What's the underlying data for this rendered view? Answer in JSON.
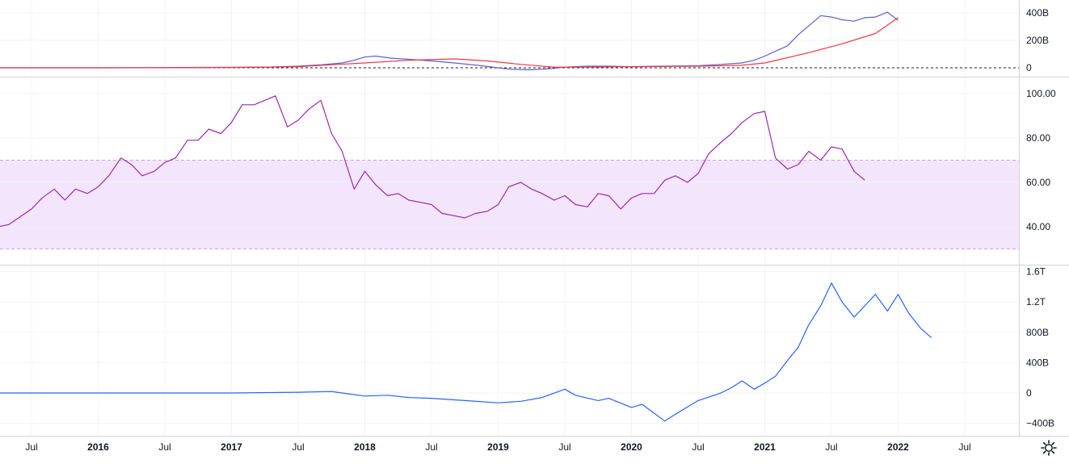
{
  "colors": {
    "grid": "#f0f3fa",
    "separator": "#d1d4dc",
    "macd_line": "#5b5fd4",
    "signal_line": "#f23645",
    "zero_line": "#1c1c1c",
    "rsi_line": "#9c27b0",
    "rsi_band": "#f3e5fc",
    "rsi_band_border": "#c8a6d8",
    "momentum_line": "#2962ff"
  },
  "settings_icon": "gear-icon",
  "chart_data": [
    {
      "type": "line",
      "panel": "macd",
      "grid": true,
      "y_ticks": [
        {
          "value": 0,
          "label": "0"
        },
        {
          "value": 200,
          "label": "200B"
        },
        {
          "value": 400,
          "label": "400B"
        }
      ],
      "ylim": [
        -25,
        450
      ],
      "zero_line": 0,
      "series": [
        {
          "color_key": "macd_line",
          "points": [
            [
              2015.0,
              0
            ],
            [
              2015.5,
              0
            ],
            [
              2016.0,
              0
            ],
            [
              2016.5,
              2
            ],
            [
              2017.0,
              4
            ],
            [
              2017.3,
              6
            ],
            [
              2017.5,
              12
            ],
            [
              2017.67,
              22
            ],
            [
              2017.83,
              35
            ],
            [
              2017.92,
              55
            ],
            [
              2018.0,
              78
            ],
            [
              2018.08,
              85
            ],
            [
              2018.2,
              70
            ],
            [
              2018.33,
              62
            ],
            [
              2018.5,
              50
            ],
            [
              2018.67,
              35
            ],
            [
              2018.83,
              20
            ],
            [
              2019.0,
              0
            ],
            [
              2019.08,
              -10
            ],
            [
              2019.25,
              -15
            ],
            [
              2019.42,
              -5
            ],
            [
              2019.5,
              5
            ],
            [
              2019.67,
              12
            ],
            [
              2019.83,
              12
            ],
            [
              2020.0,
              8
            ],
            [
              2020.25,
              12
            ],
            [
              2020.5,
              15
            ],
            [
              2020.67,
              25
            ],
            [
              2020.83,
              35
            ],
            [
              2020.92,
              55
            ],
            [
              2021.0,
              85
            ],
            [
              2021.17,
              160
            ],
            [
              2021.25,
              240
            ],
            [
              2021.42,
              380
            ],
            [
              2021.5,
              370
            ],
            [
              2021.58,
              350
            ],
            [
              2021.67,
              340
            ],
            [
              2021.75,
              365
            ],
            [
              2021.83,
              370
            ],
            [
              2021.92,
              405
            ],
            [
              2022.0,
              345
            ]
          ]
        },
        {
          "color_key": "signal_line",
          "points": [
            [
              2015.0,
              0
            ],
            [
              2016.0,
              0
            ],
            [
              2017.0,
              2
            ],
            [
              2017.5,
              8
            ],
            [
              2018.0,
              35
            ],
            [
              2018.33,
              55
            ],
            [
              2018.67,
              65
            ],
            [
              2018.92,
              50
            ],
            [
              2019.17,
              25
            ],
            [
              2019.42,
              5
            ],
            [
              2019.67,
              5
            ],
            [
              2020.0,
              8
            ],
            [
              2020.5,
              12
            ],
            [
              2020.83,
              18
            ],
            [
              2021.0,
              35
            ],
            [
              2021.33,
              110
            ],
            [
              2021.58,
              175
            ],
            [
              2021.83,
              250
            ],
            [
              2022.0,
              365
            ]
          ]
        }
      ]
    },
    {
      "type": "line",
      "panel": "rsi",
      "grid": true,
      "y_ticks": [
        {
          "value": 40,
          "label": "40.00"
        },
        {
          "value": 60,
          "label": "60.00"
        },
        {
          "value": 80,
          "label": "80.00"
        },
        {
          "value": 100,
          "label": "100.00"
        }
      ],
      "ylim": [
        25,
        105
      ],
      "band": [
        30,
        70
      ],
      "series": [
        {
          "color_key": "rsi_line",
          "points": [
            [
              2015.0,
              38
            ],
            [
              2015.08,
              41
            ],
            [
              2015.17,
              44
            ],
            [
              2015.25,
              40
            ],
            [
              2015.33,
              41
            ],
            [
              2015.5,
              48
            ],
            [
              2015.58,
              53
            ],
            [
              2015.67,
              57
            ],
            [
              2015.75,
              52
            ],
            [
              2015.83,
              57
            ],
            [
              2015.92,
              55
            ],
            [
              2016.0,
              58
            ],
            [
              2016.08,
              63
            ],
            [
              2016.17,
              71
            ],
            [
              2016.25,
              68
            ],
            [
              2016.33,
              63
            ],
            [
              2016.42,
              65
            ],
            [
              2016.5,
              69
            ],
            [
              2016.58,
              71
            ],
            [
              2016.67,
              79
            ],
            [
              2016.75,
              79
            ],
            [
              2016.83,
              84
            ],
            [
              2016.92,
              82
            ],
            [
              2017.0,
              87
            ],
            [
              2017.08,
              95
            ],
            [
              2017.17,
              95
            ],
            [
              2017.25,
              97
            ],
            [
              2017.33,
              99
            ],
            [
              2017.42,
              85
            ],
            [
              2017.5,
              88
            ],
            [
              2017.58,
              93
            ],
            [
              2017.67,
              97
            ],
            [
              2017.75,
              82
            ],
            [
              2017.83,
              74
            ],
            [
              2017.92,
              57
            ],
            [
              2018.0,
              65
            ],
            [
              2018.08,
              59
            ],
            [
              2018.17,
              54
            ],
            [
              2018.25,
              55
            ],
            [
              2018.33,
              52
            ],
            [
              2018.42,
              51
            ],
            [
              2018.5,
              50
            ],
            [
              2018.58,
              46
            ],
            [
              2018.67,
              45
            ],
            [
              2018.75,
              44
            ],
            [
              2018.83,
              46
            ],
            [
              2018.92,
              47
            ],
            [
              2019.0,
              50
            ],
            [
              2019.08,
              58
            ],
            [
              2019.17,
              60
            ],
            [
              2019.25,
              57
            ],
            [
              2019.33,
              55
            ],
            [
              2019.42,
              52
            ],
            [
              2019.5,
              54
            ],
            [
              2019.58,
              50
            ],
            [
              2019.67,
              49
            ],
            [
              2019.75,
              55
            ],
            [
              2019.83,
              54
            ],
            [
              2019.92,
              48
            ],
            [
              2020.0,
              53
            ],
            [
              2020.08,
              55
            ],
            [
              2020.17,
              55
            ],
            [
              2020.25,
              61
            ],
            [
              2020.33,
              63
            ],
            [
              2020.42,
              60
            ],
            [
              2020.5,
              64
            ],
            [
              2020.58,
              73
            ],
            [
              2020.67,
              78
            ],
            [
              2020.75,
              82
            ],
            [
              2020.83,
              87
            ],
            [
              2020.92,
              91
            ],
            [
              2021.0,
              92
            ],
            [
              2021.08,
              71
            ],
            [
              2021.17,
              66
            ],
            [
              2021.25,
              68
            ],
            [
              2021.33,
              74
            ],
            [
              2021.42,
              70
            ],
            [
              2021.5,
              76
            ],
            [
              2021.58,
              75
            ],
            [
              2021.67,
              65
            ],
            [
              2021.75,
              61
            ]
          ]
        }
      ]
    },
    {
      "type": "line",
      "panel": "momentum",
      "grid": true,
      "y_ticks": [
        {
          "value": -400,
          "label": "−400B"
        },
        {
          "value": 0,
          "label": "0"
        },
        {
          "value": 400,
          "label": "400B"
        },
        {
          "value": 800,
          "label": "800B"
        },
        {
          "value": 1200,
          "label": "1.2T"
        },
        {
          "value": 1600,
          "label": "1.6T"
        }
      ],
      "ylim": [
        -450,
        1620
      ],
      "series": [
        {
          "color_key": "momentum_line",
          "points": [
            [
              2015.0,
              0
            ],
            [
              2016.0,
              0
            ],
            [
              2017.0,
              0
            ],
            [
              2017.5,
              10
            ],
            [
              2017.75,
              20
            ],
            [
              2017.83,
              0
            ],
            [
              2018.0,
              -40
            ],
            [
              2018.17,
              -30
            ],
            [
              2018.33,
              -60
            ],
            [
              2018.5,
              -70
            ],
            [
              2018.75,
              -100
            ],
            [
              2019.0,
              -130
            ],
            [
              2019.17,
              -110
            ],
            [
              2019.33,
              -60
            ],
            [
              2019.5,
              50
            ],
            [
              2019.58,
              -30
            ],
            [
              2019.75,
              -100
            ],
            [
              2019.83,
              -70
            ],
            [
              2020.0,
              -190
            ],
            [
              2020.08,
              -150
            ],
            [
              2020.25,
              -370
            ],
            [
              2020.33,
              -280
            ],
            [
              2020.5,
              -100
            ],
            [
              2020.67,
              0
            ],
            [
              2020.75,
              70
            ],
            [
              2020.83,
              160
            ],
            [
              2020.92,
              50
            ],
            [
              2021.0,
              130
            ],
            [
              2021.08,
              220
            ],
            [
              2021.17,
              430
            ],
            [
              2021.25,
              600
            ],
            [
              2021.33,
              900
            ],
            [
              2021.42,
              1150
            ],
            [
              2021.5,
              1450
            ],
            [
              2021.58,
              1200
            ],
            [
              2021.67,
              1000
            ],
            [
              2021.75,
              1150
            ],
            [
              2021.83,
              1300
            ],
            [
              2021.92,
              1080
            ],
            [
              2022.0,
              1300
            ],
            [
              2022.08,
              1050
            ],
            [
              2022.17,
              850
            ],
            [
              2022.25,
              730
            ]
          ]
        }
      ]
    }
  ],
  "time_axis": {
    "ticks": [
      {
        "value": 2015.5,
        "label": "Jul",
        "kind": "month"
      },
      {
        "value": 2016.0,
        "label": "2016",
        "kind": "year"
      },
      {
        "value": 2016.5,
        "label": "Jul",
        "kind": "month"
      },
      {
        "value": 2017.0,
        "label": "2017",
        "kind": "year"
      },
      {
        "value": 2017.5,
        "label": "Jul",
        "kind": "month"
      },
      {
        "value": 2018.0,
        "label": "2018",
        "kind": "year"
      },
      {
        "value": 2018.5,
        "label": "Jul",
        "kind": "month"
      },
      {
        "value": 2019.0,
        "label": "2019",
        "kind": "year"
      },
      {
        "value": 2019.5,
        "label": "Jul",
        "kind": "month"
      },
      {
        "value": 2020.0,
        "label": "2020",
        "kind": "year"
      },
      {
        "value": 2020.5,
        "label": "Jul",
        "kind": "month"
      },
      {
        "value": 2021.0,
        "label": "2021",
        "kind": "year"
      },
      {
        "value": 2021.5,
        "label": "Jul",
        "kind": "month"
      },
      {
        "value": 2022.0,
        "label": "2022",
        "kind": "year"
      },
      {
        "value": 2022.5,
        "label": "Jul",
        "kind": "month"
      }
    ]
  }
}
